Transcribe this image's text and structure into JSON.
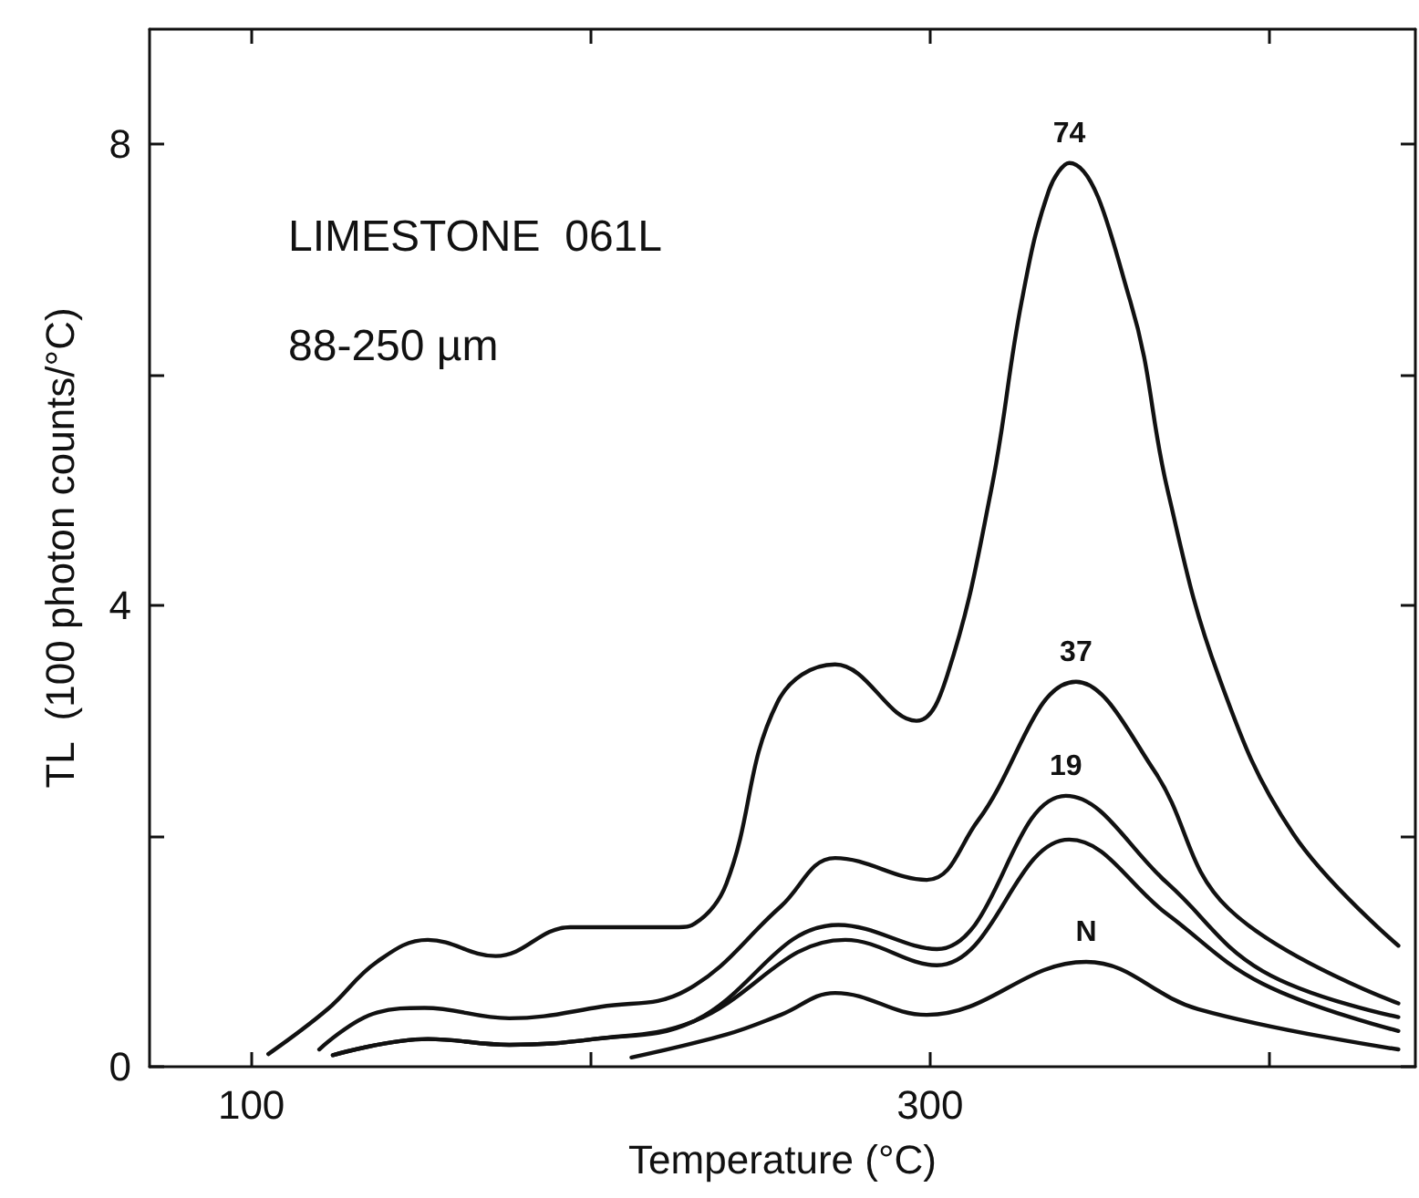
{
  "chart_data": {
    "type": "line",
    "xlabel": "Temperature (°C)",
    "ylabel": "TL  (100 photon counts/°C)",
    "annotations": [
      "LIMESTONE  061L",
      "88-250 µm"
    ],
    "xlim": [
      70,
      443
    ],
    "ylim": [
      0,
      9
    ],
    "xticks": [
      100,
      {
        "value": 200,
        "label": null
      },
      300,
      {
        "value": 400,
        "label": null
      }
    ],
    "yticks": [
      0,
      {
        "value": 2,
        "label": null
      },
      4,
      {
        "value": 6,
        "label": null
      },
      8
    ],
    "grid": false,
    "legend": false,
    "marker": "none",
    "line_style": "solid",
    "series": [
      {
        "name": "74",
        "color": "#111111",
        "x": [
          105,
          122.5,
          137,
          152,
          172,
          194,
          226,
          230,
          240,
          255,
          272,
          296,
          305,
          318,
          327,
          335,
          341,
          359,
          370,
          385,
          407,
          438
        ],
        "values": [
          0.11,
          0.5,
          0.91,
          1.1,
          0.96,
          1.21,
          1.21,
          1.23,
          1.59,
          3.16,
          3.49,
          3.0,
          3.39,
          5.0,
          6.64,
          7.6,
          7.84,
          6.64,
          5.0,
          3.39,
          2.02,
          1.05
        ]
      },
      {
        "name": "37",
        "color": "#111111",
        "x": [
          120,
          137,
          151,
          176,
          203,
          228,
          256,
          272,
          299,
          314,
          343,
          366,
          388,
          438
        ],
        "values": [
          0.15,
          0.47,
          0.51,
          0.42,
          0.52,
          0.66,
          1.39,
          1.81,
          1.62,
          2.13,
          3.34,
          2.57,
          1.37,
          0.55
        ]
      },
      {
        "name": "19",
        "color": "#111111",
        "x": [
          124,
          152,
          176,
          201,
          230,
          273,
          302,
          340,
          370,
          398,
          438
        ],
        "values": [
          0.1,
          0.24,
          0.19,
          0.24,
          0.39,
          1.23,
          1.02,
          2.35,
          1.59,
          0.83,
          0.43
        ]
      },
      {
        "color": "#111111",
        "x": [
          124,
          152,
          176,
          201,
          230,
          275,
          302,
          341,
          370,
          398,
          438
        ],
        "values": [
          0.1,
          0.24,
          0.19,
          0.24,
          0.39,
          1.1,
          0.88,
          1.97,
          1.32,
          0.72,
          0.31
        ]
      },
      {
        "name": "N",
        "color": "#111111",
        "x": [
          212,
          240,
          256,
          272,
          299,
          346,
          379,
          438
        ],
        "values": [
          0.08,
          0.28,
          0.45,
          0.64,
          0.45,
          0.91,
          0.5,
          0.15
        ]
      }
    ]
  }
}
